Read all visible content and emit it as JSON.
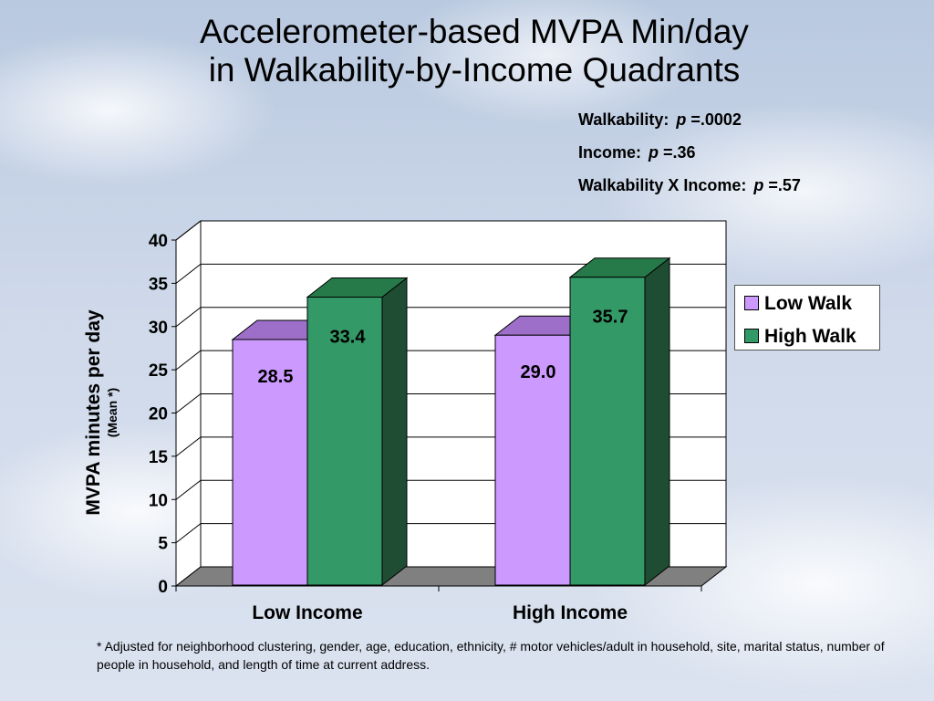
{
  "title": {
    "line1": "Accelerometer-based MVPA Min/day",
    "line2": "in Walkability-by-Income Quadrants"
  },
  "stats": [
    {
      "label": "Walkability:",
      "p": "p",
      "value": " =.0002"
    },
    {
      "label": "Income:",
      "p": "p",
      "value": " =.36"
    },
    {
      "label": "Walkability X Income:",
      "p": "p",
      "value": " =.57"
    }
  ],
  "axis": {
    "ylabel": "MVPA minutes per day",
    "ysub": "(Mean *)"
  },
  "legend": [
    {
      "label": "Low Walk",
      "color": "#cc99ff"
    },
    {
      "label": "High Walk",
      "color": "#339966"
    }
  ],
  "footnote": "* Adjusted for neighborhood clustering, gender, age, education, ethnicity, # motor vehicles/adult in household, site, marital status, number of people in household, and length of time at current address.",
  "chart_data": {
    "type": "bar",
    "categories": [
      "Low Income",
      "High Income"
    ],
    "series": [
      {
        "name": "Low Walk",
        "values": [
          28.5,
          29.0
        ],
        "labels": [
          "28.5",
          "29.0"
        ],
        "color": "#cc99ff",
        "side": "#9966cc",
        "top": "#9e6fc9"
      },
      {
        "name": "High Walk",
        "values": [
          33.4,
          35.7
        ],
        "labels": [
          "33.4",
          "35.7"
        ],
        "color": "#339966",
        "side": "#1f4d33",
        "top": "#267a4a"
      }
    ],
    "yticks": [
      "0",
      "5",
      "10",
      "15",
      "20",
      "25",
      "30",
      "35",
      "40"
    ],
    "ylim": [
      0,
      40
    ],
    "grid": true,
    "legend_position": "right"
  }
}
